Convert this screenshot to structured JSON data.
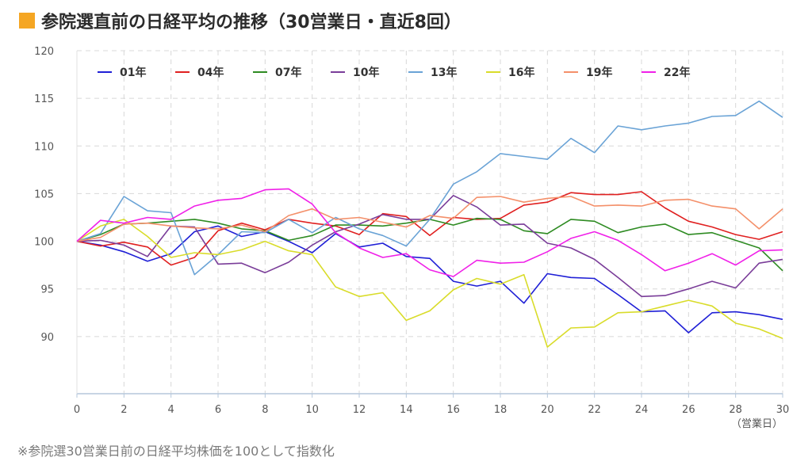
{
  "title": "参院選直前の日経平均の推移（30営業日・直近8回）",
  "footnote": "※参院選30営業日前の日経平均株価を100として指数化",
  "chart_data": {
    "type": "line",
    "x_unit_label": "（営業日）",
    "xlim": [
      0,
      30
    ],
    "ylim": [
      84,
      120
    ],
    "x_ticks": [
      0,
      2,
      4,
      6,
      8,
      10,
      12,
      14,
      16,
      18,
      20,
      22,
      24,
      26,
      28,
      30
    ],
    "y_ticks": [
      90,
      95,
      100,
      105,
      110,
      115,
      120
    ],
    "grid": true,
    "legend_position": "top",
    "x": [
      0,
      1,
      2,
      3,
      4,
      5,
      6,
      7,
      8,
      9,
      10,
      11,
      12,
      13,
      14,
      15,
      16,
      17,
      18,
      19,
      20,
      21,
      22,
      23,
      24,
      25,
      26,
      27,
      28,
      29,
      30
    ],
    "series": [
      {
        "name": "01年",
        "color": "#1f1fd6",
        "values": [
          100,
          99.6,
          98.9,
          97.9,
          98.7,
          101,
          101.6,
          100.5,
          101,
          100,
          98.8,
          100.8,
          99.4,
          99.8,
          98.4,
          98.2,
          95.8,
          95.3,
          95.8,
          93.5,
          96.6,
          96.2,
          96.1,
          94.4,
          92.6,
          92.7,
          90.4,
          92.5,
          92.6,
          92.3,
          91.8
        ]
      },
      {
        "name": "04年",
        "color": "#e02020",
        "values": [
          100,
          99.5,
          99.9,
          99.4,
          97.5,
          98.3,
          101.1,
          101.9,
          101.2,
          102.3,
          101.9,
          101.6,
          100.7,
          102.9,
          102.6,
          100.6,
          102.5,
          102.3,
          102.4,
          103.8,
          104.1,
          105.1,
          104.9,
          104.9,
          105.2,
          103.5,
          102.1,
          101.5,
          100.7,
          100.2,
          101
        ]
      },
      {
        "name": "07年",
        "color": "#2e8b22",
        "values": [
          100,
          100.7,
          101.8,
          101.9,
          102.1,
          102.3,
          101.9,
          101.3,
          101.1,
          100.1,
          100.6,
          101.7,
          101.7,
          101.6,
          101.9,
          102.3,
          101.7,
          102.4,
          102.3,
          101.1,
          100.8,
          102.3,
          102.1,
          100.9,
          101.5,
          101.8,
          100.7,
          100.9,
          100.1,
          99.3,
          96.9
        ]
      },
      {
        "name": "10年",
        "color": "#7a3d99",
        "values": [
          100,
          100.1,
          99.6,
          98.4,
          101.6,
          101.5,
          97.6,
          97.7,
          96.7,
          97.8,
          99.6,
          101,
          101.8,
          102.8,
          102.3,
          102.3,
          104.8,
          103.6,
          101.7,
          101.8,
          99.8,
          99.3,
          98.1,
          96.2,
          94.2,
          94.3,
          95,
          95.8,
          95.1,
          97.7,
          98.1
        ]
      },
      {
        "name": "13年",
        "color": "#6aa3d6",
        "values": [
          100,
          100.8,
          104.7,
          103.2,
          103,
          96.5,
          98.6,
          101,
          100.9,
          102.3,
          100.9,
          102.5,
          101.3,
          100.6,
          99.5,
          102.3,
          106,
          107.3,
          109.2,
          108.9,
          108.6,
          110.8,
          109.3,
          112.1,
          111.7,
          112.1,
          112.4,
          113.1,
          113.2,
          114.7,
          113
        ]
      },
      {
        "name": "16年",
        "color": "#d9dc2a",
        "values": [
          100,
          101.6,
          102.3,
          100.5,
          98.3,
          98.8,
          98.6,
          99.1,
          100,
          99,
          98.6,
          95.2,
          94.2,
          94.6,
          91.7,
          92.7,
          94.9,
          96.1,
          95.5,
          96.5,
          88.9,
          90.9,
          91,
          92.5,
          92.6,
          93.2,
          93.8,
          93.2,
          91.4,
          90.8,
          89.8
        ]
      },
      {
        "name": "19年",
        "color": "#f4906a",
        "values": [
          100,
          100.4,
          101.8,
          101.9,
          101.6,
          101.4,
          101.3,
          101.7,
          101,
          102.7,
          103.4,
          102.3,
          102.5,
          102,
          101.5,
          102.7,
          102.4,
          104.6,
          104.7,
          104.1,
          104.5,
          104.7,
          103.7,
          103.8,
          103.7,
          104.3,
          104.4,
          103.7,
          103.4,
          101.3,
          103.4
        ]
      },
      {
        "name": "22年",
        "color": "#f020e8",
        "values": [
          100,
          102.2,
          101.9,
          102.5,
          102.3,
          103.7,
          104.3,
          104.5,
          105.4,
          105.5,
          103.9,
          100.9,
          99.3,
          98.3,
          98.7,
          97,
          96.3,
          98,
          97.7,
          97.8,
          98.9,
          100.3,
          101,
          100.1,
          98.6,
          96.9,
          97.7,
          98.7,
          97.5,
          99,
          99.1
        ]
      }
    ]
  }
}
